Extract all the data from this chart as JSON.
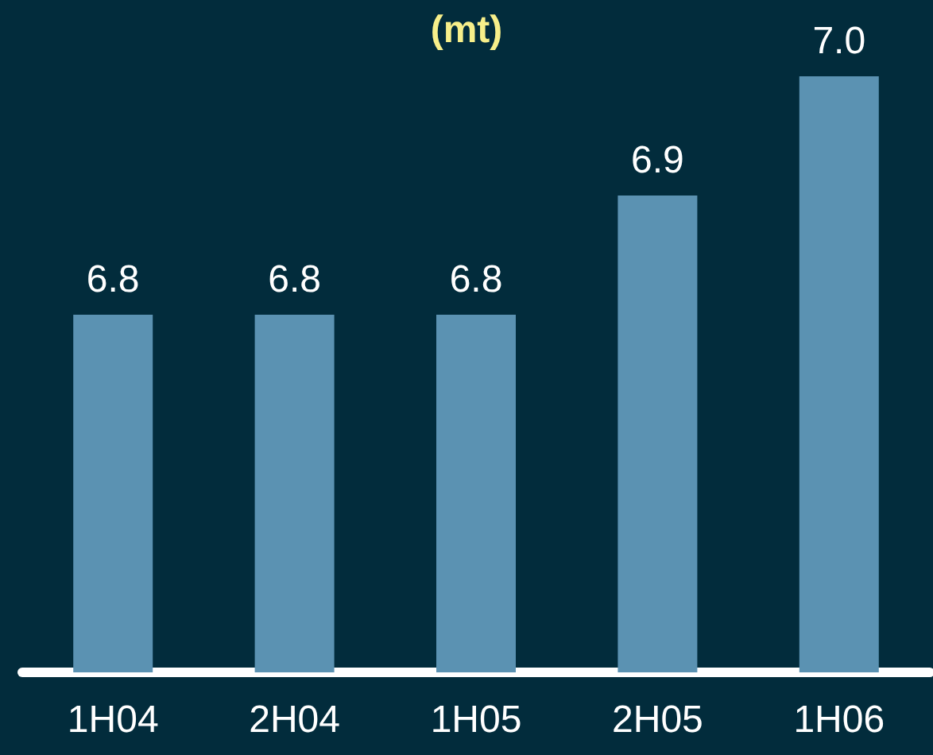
{
  "chart_data": {
    "type": "bar",
    "title": "(mt)",
    "categories": [
      "1H04",
      "2H04",
      "1H05",
      "2H05",
      "1H06"
    ],
    "values": [
      6.8,
      6.8,
      6.8,
      6.9,
      7.0
    ],
    "value_labels": [
      "6.8",
      "6.8",
      "6.8",
      "6.9",
      "7.0"
    ],
    "color": "#5b92b2",
    "ylim": [
      6.5,
      7.0
    ],
    "tick_labels": "x",
    "grid": false
  }
}
